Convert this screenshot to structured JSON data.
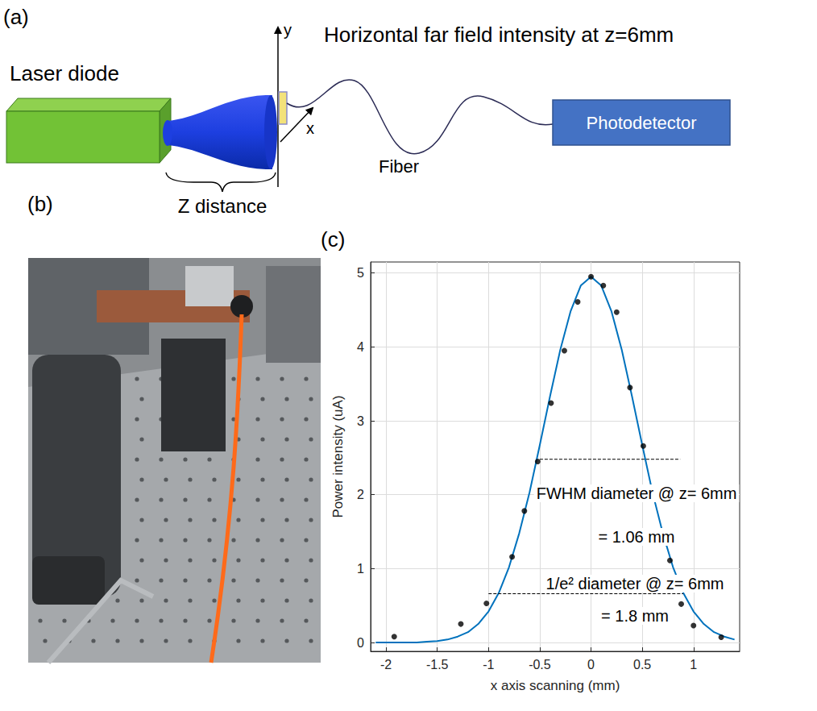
{
  "diagram": {
    "label": "(a)",
    "title": "Horizontal far field intensity at z=6mm",
    "source": "Laser diode",
    "detector": "Photodetector",
    "fiber": "Fiber",
    "distance": "Z distance",
    "axes": [
      "y",
      "x"
    ]
  },
  "photo": {
    "label": "(b)"
  },
  "chart_data": {
    "label": "(c)",
    "type": "scatter",
    "x_label": "x axis scanning (mm)",
    "y_label": "Power intensity (uA)",
    "xlim": [
      -2.15,
      1.45
    ],
    "ylim": [
      -0.12,
      5.15
    ],
    "xticks": [
      -2,
      -1.5,
      -1,
      -0.5,
      0,
      0.5,
      1
    ],
    "yticks": [
      0,
      1,
      2,
      3,
      4,
      5
    ],
    "grid": true,
    "series": [
      {
        "type": "line",
        "color": "#0072bd",
        "line_style": "solid",
        "x": [
          -2.1,
          -2.0,
          -1.9,
          -1.8,
          -1.7,
          -1.6,
          -1.5,
          -1.4,
          -1.3,
          -1.2,
          -1.1,
          -1.0,
          -0.9,
          -0.8,
          -0.7,
          -0.6,
          -0.5,
          -0.4,
          -0.3,
          -0.2,
          -0.1,
          0.0,
          0.1,
          0.2,
          0.3,
          0.4,
          0.5,
          0.6,
          0.7,
          0.8,
          0.9,
          1.0,
          1.1,
          1.2,
          1.3,
          1.4
        ],
        "values": [
          0,
          0,
          0,
          0,
          0,
          0.01,
          0.02,
          0.04,
          0.08,
          0.14,
          0.25,
          0.42,
          0.67,
          1.02,
          1.48,
          2.03,
          2.67,
          3.33,
          3.96,
          4.48,
          4.83,
          4.95,
          4.83,
          4.48,
          3.96,
          3.33,
          2.67,
          2.03,
          1.48,
          1.02,
          0.67,
          0.42,
          0.25,
          0.14,
          0.08,
          0.04
        ]
      },
      {
        "type": "scatter",
        "color": "#000000",
        "marker": "circle",
        "x": [
          -1.92,
          -1.27,
          -1.02,
          -0.77,
          -0.65,
          -0.52,
          -0.39,
          -0.26,
          -0.13,
          0.0,
          0.12,
          0.25,
          0.38,
          0.51,
          0.77,
          0.88,
          1.0,
          1.27
        ],
        "values": [
          0.08,
          0.25,
          0.53,
          1.16,
          1.78,
          2.45,
          3.24,
          3.95,
          4.61,
          4.95,
          4.83,
          4.47,
          3.45,
          2.66,
          1.11,
          0.52,
          0.23,
          0.07
        ]
      }
    ],
    "annotations": [
      {
        "text": [
          "FWHM diameter @ z= 6mm",
          "= 1.06 mm"
        ],
        "x": [
          -0.5,
          0.87
        ],
        "y": 2.48,
        "line_style": "dashed"
      },
      {
        "text": [
          "1/e² diameter @ z= 6mm",
          "= 1.8 mm"
        ],
        "x": [
          -1.0,
          0.9
        ],
        "y": 0.66,
        "line_style": "dashed"
      }
    ]
  }
}
